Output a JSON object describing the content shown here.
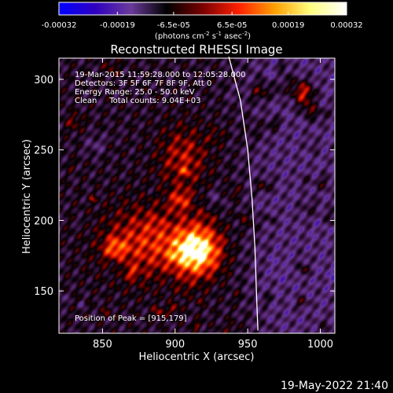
{
  "chart_data": {
    "type": "heatmap",
    "title": "Reconstructed RHESSI Image",
    "xlabel": "Heliocentric X (arcsec)",
    "ylabel": "Heliocentric Y (arcsec)",
    "xlim": [
      820,
      1010
    ],
    "ylim": [
      120,
      315
    ],
    "x_ticks": [
      850,
      900,
      950,
      1000
    ],
    "y_ticks": [
      150,
      200,
      250,
      300
    ],
    "colorbar": {
      "min": -0.00032,
      "max": 0.00032,
      "tick_values": [
        -0.00032,
        -0.00019,
        -6.5e-05,
        6.5e-05,
        0.00019,
        0.00032
      ],
      "tick_labels": [
        "-0.00032",
        "-0.00019",
        "-6.5e-05",
        "6.5e-05",
        "0.00019",
        "0.00032"
      ],
      "unit_label": "(photons cm",
      "unit_sup1": "-2",
      "unit_mid": " s",
      "unit_sup2": "-1",
      "unit_end": " asec",
      "unit_sup3": "-2",
      "unit_close": ")",
      "colors": [
        "#0000ff",
        "#2f00c0",
        "#6a3a9a",
        "#000000",
        "#7a0000",
        "#ff2000",
        "#ffa000",
        "#ffff80",
        "#ffffff"
      ]
    },
    "annotations": [
      "19-Mar-2015 11:59:28.000 to 12:05:28.000",
      "Detectors: 3F 5F 6F 7F 8F 9F, Att 0",
      "Energy Range: 25.0 - 50.0 keV",
      "Clean     Total counts: 9.04E+03"
    ],
    "peak_label": "Position of Peak = [915,179]",
    "peak": [
      915,
      179
    ],
    "limb_curve": [
      [
        937,
        316
      ],
      [
        945,
        285
      ],
      [
        950,
        250
      ],
      [
        953,
        215
      ],
      [
        955,
        180
      ],
      [
        956,
        150
      ],
      [
        957,
        122
      ]
    ]
  },
  "footer": {
    "timestamp": "19-May-2022 21:40"
  }
}
